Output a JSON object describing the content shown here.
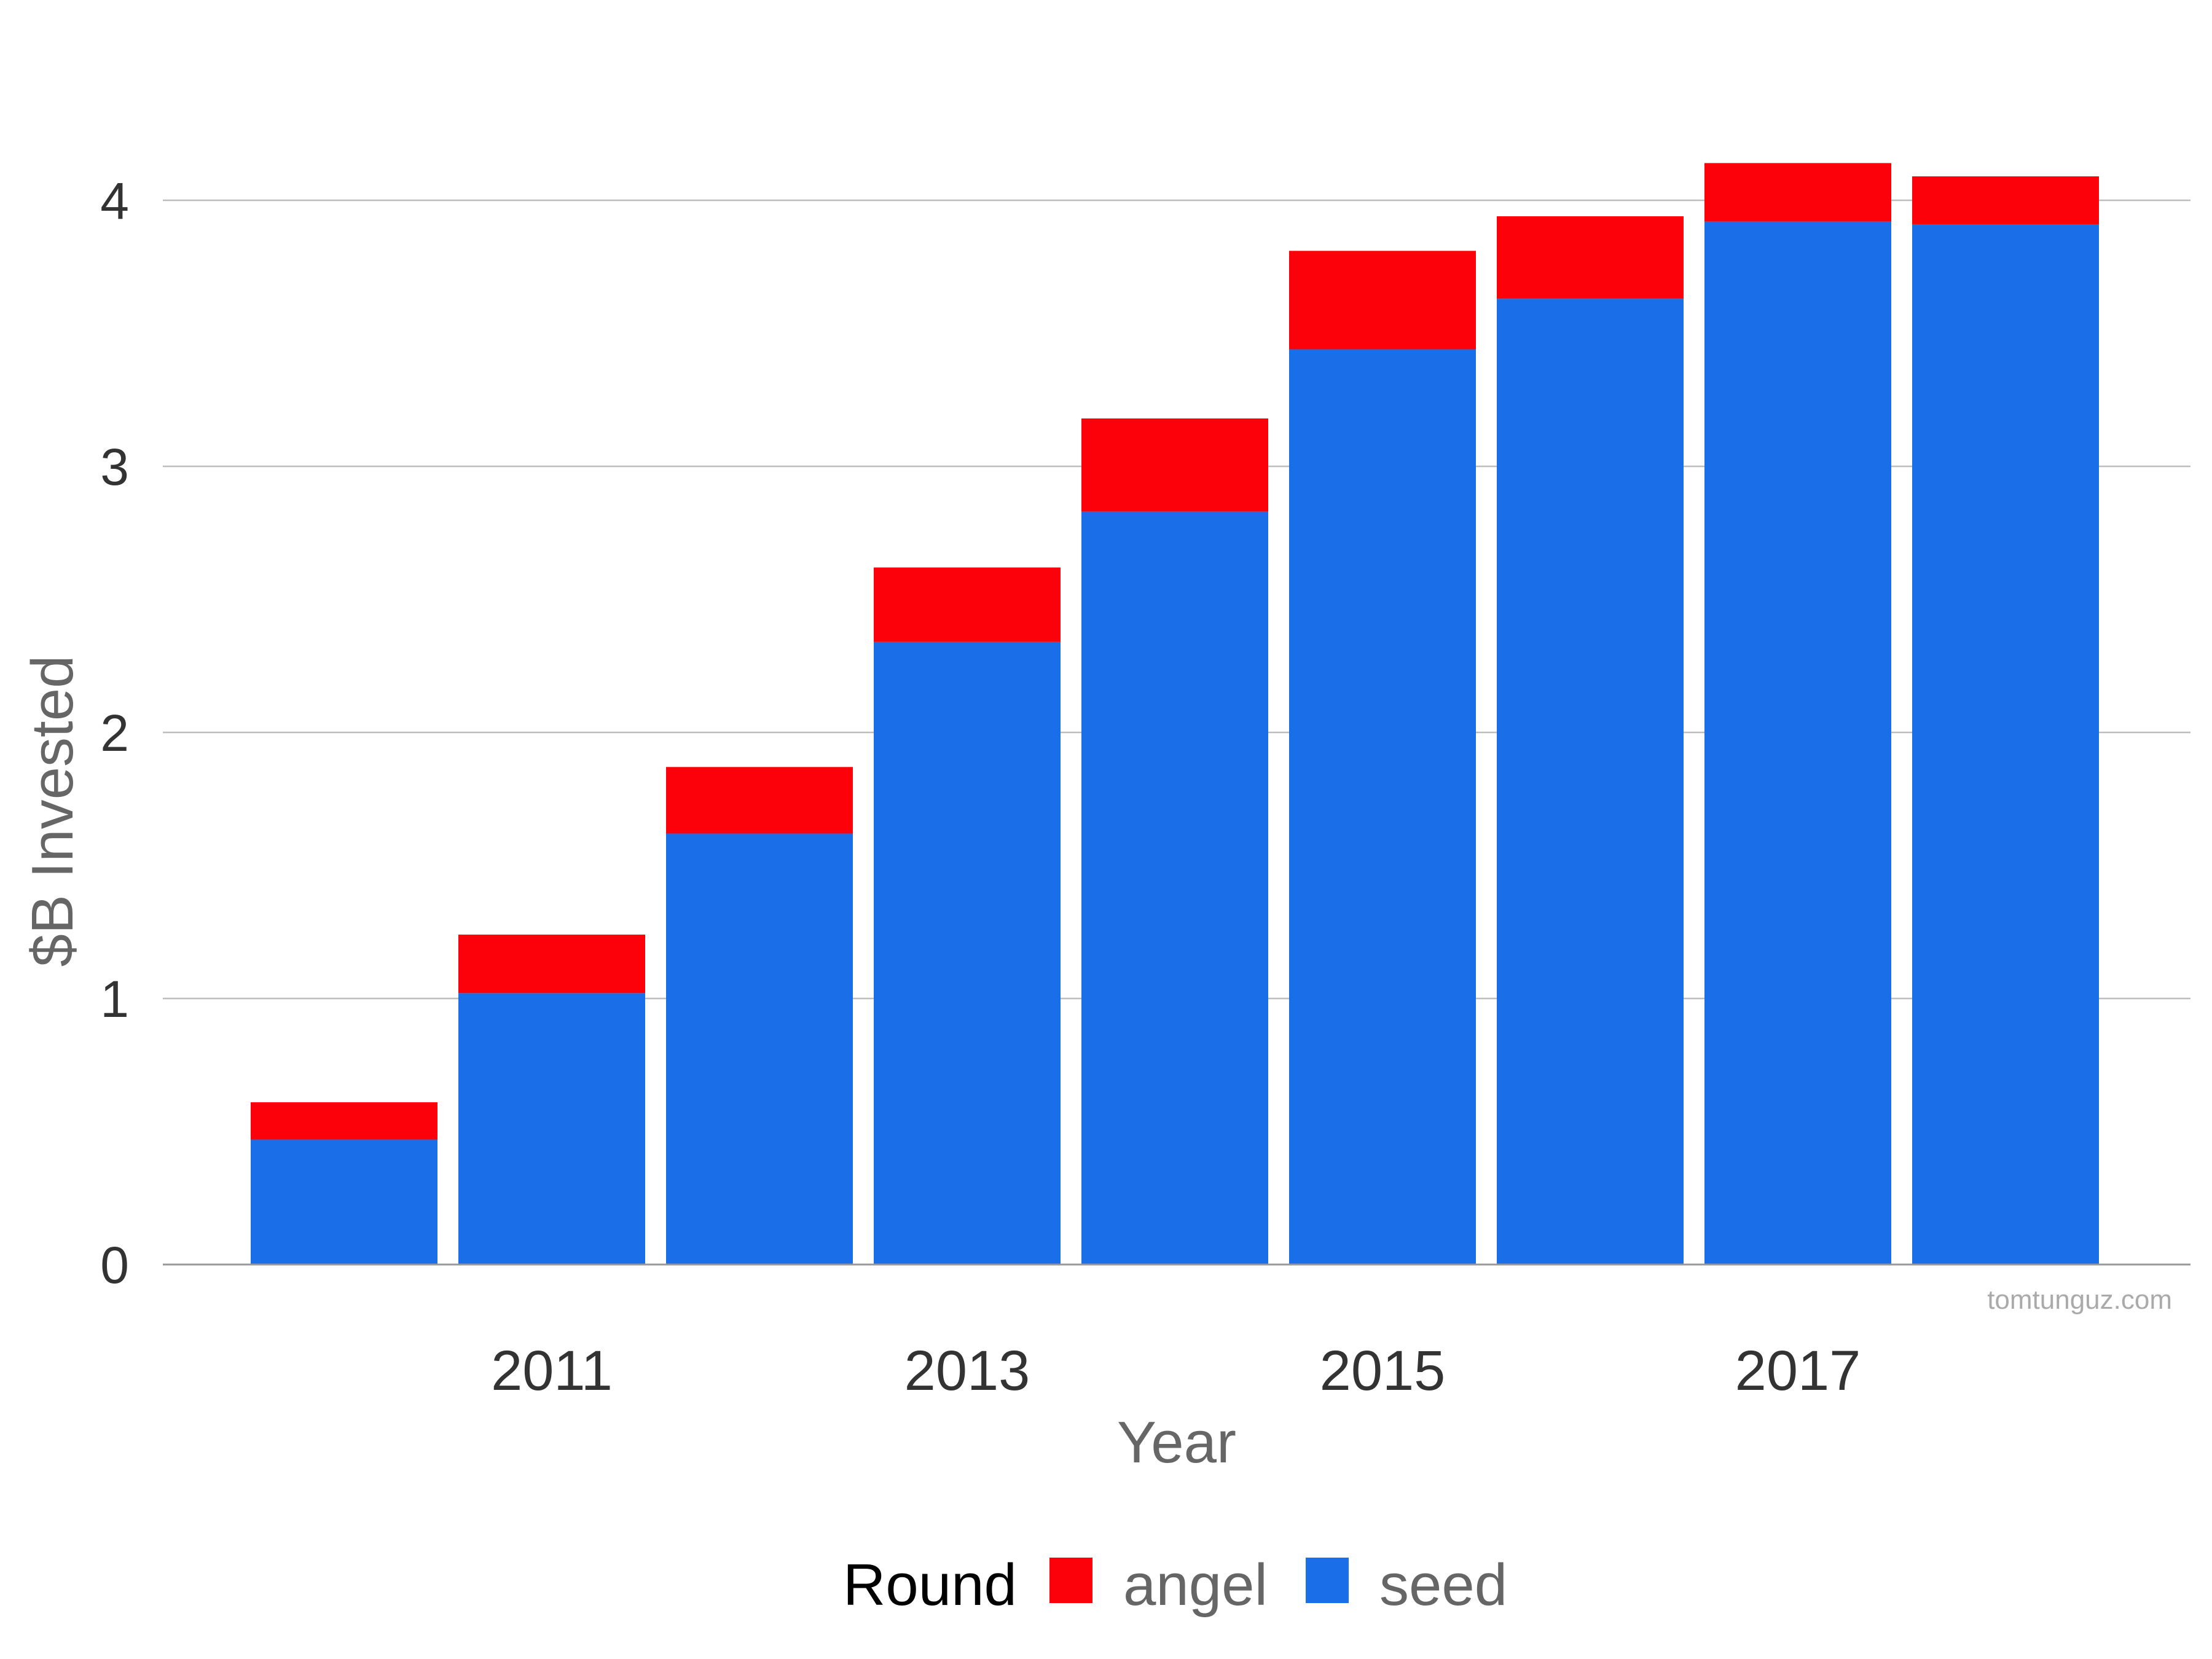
{
  "chart_data": {
    "type": "bar",
    "stacked": true,
    "categories": [
      "2010",
      "2011",
      "2012",
      "2013",
      "2014",
      "2015",
      "2016",
      "2017",
      "2018"
    ],
    "x_tick_labels": [
      "2011",
      "2013",
      "2015",
      "2017"
    ],
    "series": [
      {
        "name": "seed",
        "color": "#1a6fe8",
        "values": [
          0.47,
          1.02,
          1.62,
          2.34,
          2.83,
          3.44,
          3.63,
          3.92,
          3.91
        ]
      },
      {
        "name": "angel",
        "color": "#fc0109",
        "values": [
          0.14,
          0.22,
          0.25,
          0.28,
          0.35,
          0.37,
          0.31,
          0.22,
          0.18
        ]
      }
    ],
    "xlabel": "Year",
    "ylabel": "$B Invested",
    "ylim": [
      0,
      4.4
    ],
    "y_ticks": [
      0,
      1,
      2,
      3,
      4
    ],
    "grid": true,
    "legend": {
      "title": "Round",
      "placement": "bottom",
      "entries": [
        "angel",
        "seed"
      ]
    },
    "watermark": "tomtunguz.com"
  }
}
